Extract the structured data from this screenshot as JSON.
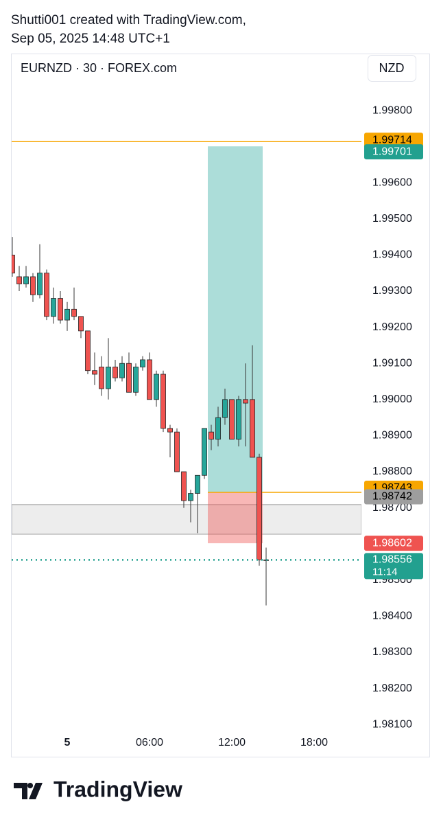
{
  "header": {
    "line1": "Shutti001 created with TradingView.com,",
    "line2": "Sep 05, 2025 14:48 UTC+1"
  },
  "chart_data": {
    "type": "candlestick",
    "title": "EURNZD · 30 · FOREX.com",
    "currency": "NZD",
    "categories": [
      null,
      null,
      null,
      null,
      null,
      null,
      null,
      null,
      "5",
      null,
      null,
      null,
      null,
      null,
      null,
      null,
      null,
      null,
      null,
      null,
      "06:00",
      null,
      null,
      null,
      null,
      null,
      null,
      null,
      null,
      null,
      null,
      null,
      "12:00",
      null,
      null,
      null,
      null,
      null,
      null,
      null,
      null,
      null,
      null,
      null,
      "18:00",
      null,
      null,
      null,
      null,
      null,
      null
    ],
    "open": [
      1.994,
      1.9934,
      1.9932,
      1.9934,
      1.9929,
      1.9935,
      1.9923,
      1.9928,
      1.9922,
      1.9925,
      1.9923,
      1.9919,
      1.9908,
      1.9909,
      1.9903,
      1.9909,
      1.9906,
      1.991,
      1.9902,
      1.9909,
      1.9911,
      1.99,
      1.9907,
      1.9892,
      1.9891,
      1.988,
      1.9872,
      1.9874,
      1.9879,
      1.9891,
      1.9889,
      1.9895,
      1.99,
      1.9889,
      1.99,
      1.99,
      1.9884,
      1.98556,
      null,
      null,
      null,
      null,
      null,
      null,
      null,
      null,
      null,
      null,
      null,
      null,
      null
    ],
    "high": [
      1.9945,
      1.9937,
      1.9937,
      1.9935,
      1.9943,
      1.9936,
      1.9931,
      1.993,
      1.9927,
      1.9931,
      1.9923,
      1.9919,
      1.9913,
      1.9912,
      1.9917,
      1.9911,
      1.9912,
      1.9913,
      1.991,
      1.9912,
      1.9913,
      1.9908,
      1.9908,
      1.9893,
      1.9892,
      1.988,
      1.9875,
      1.9879,
      1.9892,
      1.9893,
      1.9898,
      1.9903,
      1.99,
      1.9901,
      1.991,
      1.9915,
      1.9885,
      1.9859,
      null,
      null,
      null,
      null,
      null,
      null,
      null,
      null,
      null,
      null,
      null,
      null,
      null
    ],
    "low": [
      1.9934,
      1.993,
      1.9931,
      1.9927,
      1.9928,
      1.9922,
      1.9921,
      1.9921,
      1.9919,
      1.9922,
      1.9917,
      1.9907,
      1.9904,
      1.9901,
      1.99,
      1.9905,
      1.9905,
      1.9902,
      1.9901,
      1.9908,
      1.99,
      1.9898,
      1.9891,
      1.9884,
      1.988,
      1.987,
      1.9866,
      1.9863,
      1.9878,
      1.9886,
      1.9887,
      1.9893,
      1.9889,
      1.9887,
      1.9887,
      1.9884,
      1.9854,
      1.9843,
      null,
      null,
      null,
      null,
      null,
      null,
      null,
      null,
      null,
      null,
      null,
      null,
      null
    ],
    "close": [
      1.9935,
      1.9932,
      1.9934,
      1.9929,
      1.9935,
      1.9923,
      1.9928,
      1.9922,
      1.9925,
      1.9923,
      1.9919,
      1.9908,
      1.9907,
      1.9903,
      1.9909,
      1.9906,
      1.991,
      1.9902,
      1.9909,
      1.9911,
      1.99,
      1.9907,
      1.9892,
      1.9891,
      1.988,
      1.9872,
      1.9874,
      1.9879,
      1.9892,
      1.9889,
      1.9895,
      1.99,
      1.9889,
      1.99,
      1.9899,
      1.9884,
      1.98556,
      1.98556,
      null,
      null,
      null,
      null,
      null,
      null,
      null,
      null,
      null,
      null,
      null,
      null,
      null
    ],
    "up_color": "#26a69a",
    "down_color": "#ef5350",
    "ylim": [
      1.98087,
      1.99956
    ],
    "yticks": [
      {
        "value": 1.981,
        "label": "1.98100"
      },
      {
        "value": 1.982,
        "label": "1.98200"
      },
      {
        "value": 1.983,
        "label": "1.98300"
      },
      {
        "value": 1.984,
        "label": "1.98400"
      },
      {
        "value": 1.985,
        "label": "1.98500"
      },
      {
        "value": 1.986,
        "label": "1.98600"
      },
      {
        "value": 1.987,
        "label": "1.98700"
      },
      {
        "value": 1.988,
        "label": "1.98800"
      },
      {
        "value": 1.989,
        "label": "1.98900"
      },
      {
        "value": 1.99,
        "label": "1.99000"
      },
      {
        "value": 1.991,
        "label": "1.99100"
      },
      {
        "value": 1.992,
        "label": "1.99200"
      },
      {
        "value": 1.993,
        "label": "1.99300"
      },
      {
        "value": 1.994,
        "label": "1.99400"
      },
      {
        "value": 1.995,
        "label": "1.99500"
      },
      {
        "value": 1.996,
        "label": "1.99600"
      },
      {
        "value": 1.997,
        "label": "1.99700"
      },
      {
        "value": 1.998,
        "label": "1.99800"
      }
    ],
    "zone": {
      "from": 1.98627,
      "to": 1.98709,
      "color": "#ededed"
    },
    "hline": {
      "value": 1.99714,
      "color": "#f7a600"
    },
    "last_price": {
      "value": 1.98556,
      "label": "1.98556",
      "countdown": "11:14",
      "color": "#22a08f"
    },
    "position": {
      "entry": 1.98743,
      "target": 1.99701,
      "stop": 1.98602,
      "x_from": 29,
      "x_to": 36
    },
    "price_labels": [
      {
        "value": 1.99714,
        "label": "1.99714",
        "color": "#f7a600",
        "text_color": "#000000"
      },
      {
        "value": 1.99701,
        "label": "1.99701",
        "color": "#22a08f",
        "text_color": "#ffffff"
      },
      {
        "value": 1.98743,
        "label": "1.98743",
        "color": "#f7a600",
        "text_color": "#000000"
      },
      {
        "value": 1.98742,
        "label": "1.98742",
        "color": "#9e9e9e",
        "text_color": "#000000"
      },
      {
        "value": 1.98602,
        "label": "1.98602",
        "color": "#ef5350",
        "text_color": "#ffffff"
      }
    ]
  },
  "footer": {
    "brand": "TradingView"
  }
}
